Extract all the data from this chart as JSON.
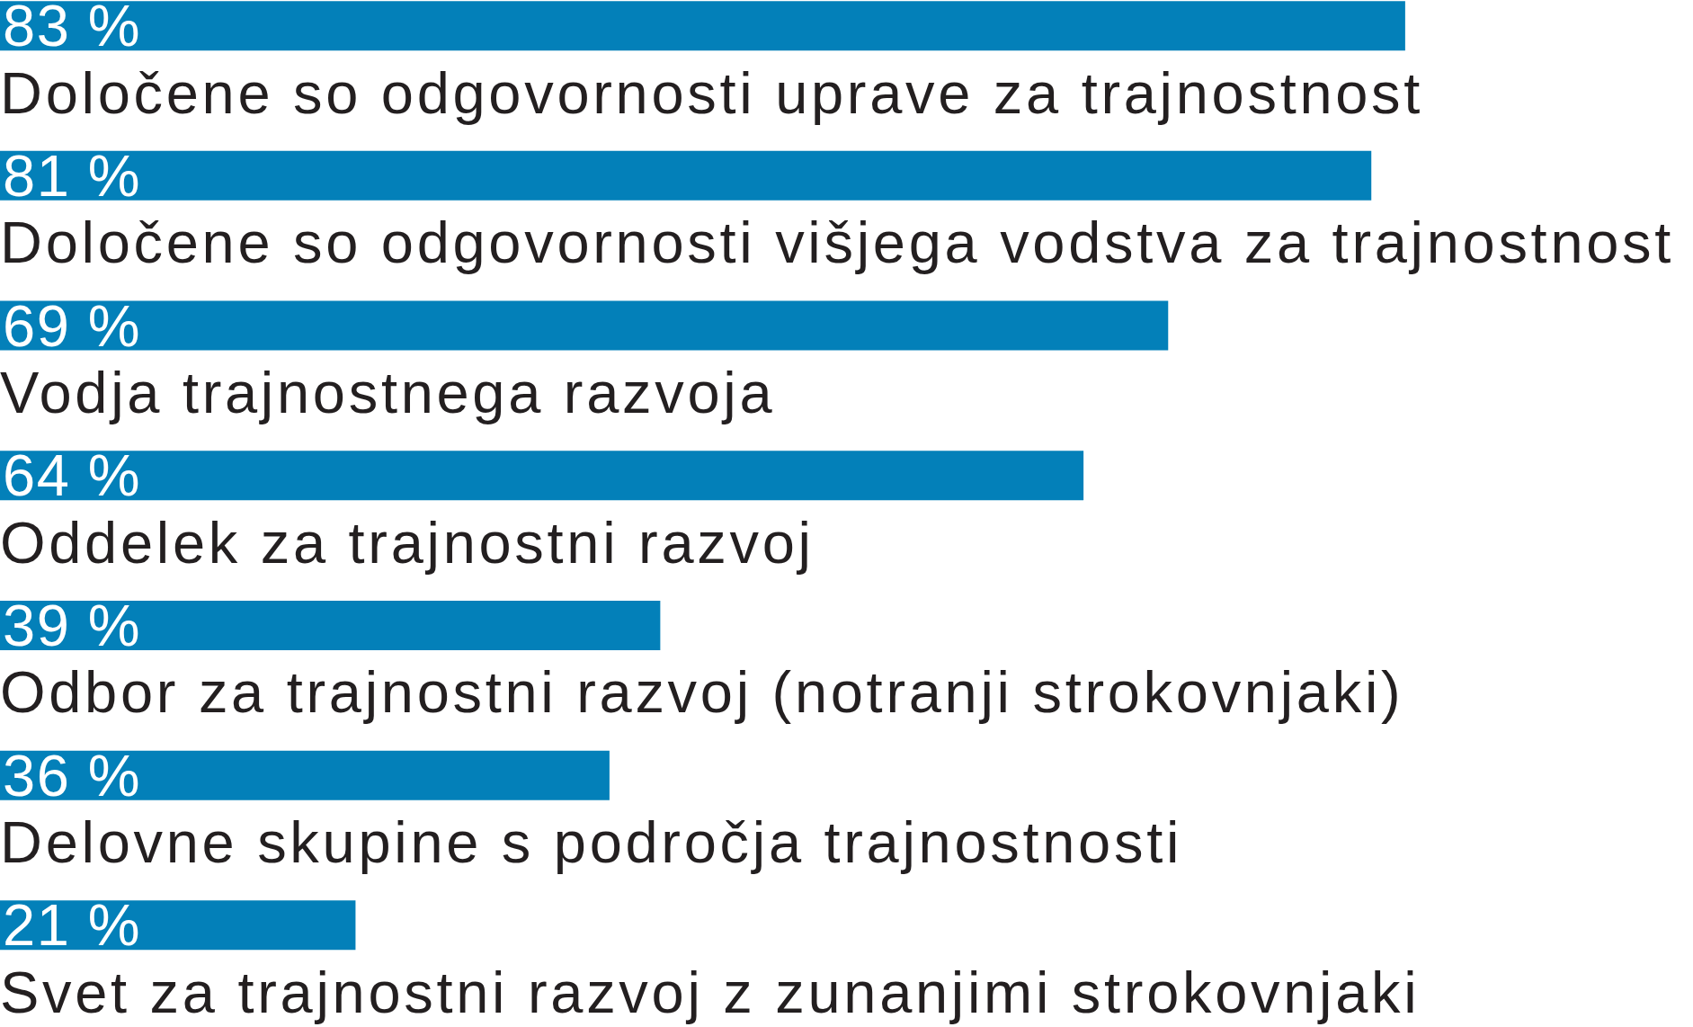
{
  "chart_data": {
    "type": "bar",
    "orientation": "horizontal",
    "categories": [
      "Določene so odgovornosti uprave za trajnostnost",
      "Določene so odgovornosti višjega vodstva za trajnostnost",
      "Vodja trajnostnega razvoja",
      "Oddelek za trajnostni razvoj",
      "Odbor za trajnostni razvoj (notranji strokovnjaki)",
      "Delovne skupine s področja trajnostnosti",
      "Svet za trajnostni razvoj z zunanjimi strokovnjaki"
    ],
    "values": [
      83,
      81,
      69,
      64,
      39,
      36,
      21
    ],
    "color": "#0380b9",
    "value_labels": [
      "83 %",
      "81 %",
      "69 %",
      "64 %",
      "39 %",
      "36 %",
      "21 %"
    ],
    "xlim": [
      0,
      100
    ],
    "tick_labels": "y"
  }
}
